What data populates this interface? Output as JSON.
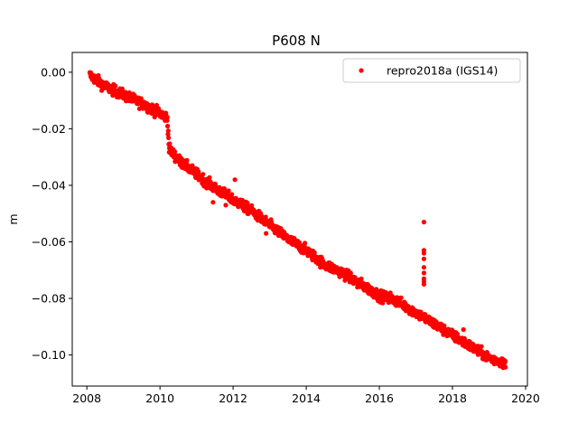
{
  "chart_data": {
    "type": "scatter",
    "title": "P608 N",
    "xlabel": "",
    "ylabel": "m",
    "xlim": [
      2007.6,
      2020.05
    ],
    "ylim": [
      -0.111,
      0.007
    ],
    "x_ticks": [
      2008,
      2010,
      2012,
      2014,
      2016,
      2018,
      2020
    ],
    "x_tick_labels": [
      "2008",
      "2010",
      "2012",
      "2014",
      "2016",
      "2018",
      "2020"
    ],
    "y_ticks": [
      0.0,
      -0.02,
      -0.04,
      -0.06,
      -0.08,
      -0.1
    ],
    "y_tick_labels": [
      "0.00",
      "−0.02",
      "−0.04",
      "−0.06",
      "−0.08",
      "−0.10"
    ],
    "grid": false,
    "legend_position": "top-right",
    "series": [
      {
        "name": "repro2018a (IGS14)",
        "color": "#ff0000",
        "marker": "circle",
        "x_range": [
          2008.08,
          2019.45
        ],
        "trend": [
          [
            2008.08,
            -0.001
          ],
          [
            2008.5,
            -0.005
          ],
          [
            2009.0,
            -0.008
          ],
          [
            2009.5,
            -0.011
          ],
          [
            2010.2,
            -0.016
          ],
          [
            2010.25,
            -0.027
          ],
          [
            2010.5,
            -0.031
          ],
          [
            2011.0,
            -0.036
          ],
          [
            2011.5,
            -0.041
          ],
          [
            2012.0,
            -0.045
          ],
          [
            2012.5,
            -0.049
          ],
          [
            2013.0,
            -0.054
          ],
          [
            2013.5,
            -0.059
          ],
          [
            2014.0,
            -0.063
          ],
          [
            2014.5,
            -0.068
          ],
          [
            2015.0,
            -0.071
          ],
          [
            2015.5,
            -0.075
          ],
          [
            2016.0,
            -0.079
          ],
          [
            2016.5,
            -0.081
          ],
          [
            2017.0,
            -0.085
          ],
          [
            2017.5,
            -0.089
          ],
          [
            2018.0,
            -0.093
          ],
          [
            2018.5,
            -0.097
          ],
          [
            2019.0,
            -0.101
          ],
          [
            2019.45,
            -0.103
          ]
        ],
        "scatter_amplitude": 0.0018,
        "outliers": [
          [
            2017.22,
            -0.053
          ],
          [
            2017.22,
            -0.063
          ],
          [
            2017.22,
            -0.064
          ],
          [
            2017.22,
            -0.066
          ],
          [
            2017.22,
            -0.069
          ],
          [
            2017.22,
            -0.071
          ],
          [
            2017.22,
            -0.073
          ],
          [
            2017.22,
            -0.074
          ],
          [
            2017.22,
            -0.075
          ],
          [
            2011.1,
            -0.037
          ],
          [
            2011.8,
            -0.047
          ],
          [
            2012.05,
            -0.038
          ],
          [
            2011.45,
            -0.046
          ],
          [
            2012.9,
            -0.057
          ],
          [
            2015.4,
            -0.076
          ],
          [
            2016.3,
            -0.078
          ],
          [
            2018.3,
            -0.091
          ],
          [
            2018.95,
            -0.1
          ]
        ]
      }
    ]
  }
}
